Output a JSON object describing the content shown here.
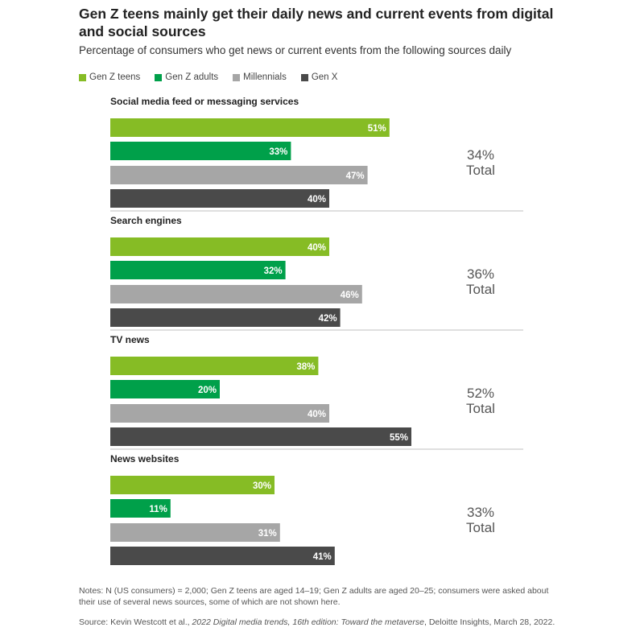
{
  "chart_data": {
    "type": "bar",
    "orientation": "horizontal",
    "title": "Gen Z teens mainly get their daily news and current events from digital and social sources",
    "subtitle": "Percentage of consumers who get news or current events from the following sources daily",
    "series_names": [
      "Gen Z teens",
      "Gen Z adults",
      "Millennials",
      "Gen X"
    ],
    "colors": [
      "#86bc25",
      "#00a04a",
      "#a6a6a6",
      "#4a4a4a"
    ],
    "xlim": [
      0,
      100
    ],
    "groups": [
      {
        "category": "Social media feed or messaging services",
        "values": [
          51,
          33,
          47,
          40
        ],
        "labels": [
          "51%",
          "33%",
          "47%",
          "40%"
        ],
        "total_value": "34%",
        "total_word": "Total"
      },
      {
        "category": "Search engines",
        "values": [
          40,
          32,
          46,
          42
        ],
        "labels": [
          "40%",
          "32%",
          "46%",
          "42%"
        ],
        "total_value": "36%",
        "total_word": "Total"
      },
      {
        "category": "TV news",
        "values": [
          38,
          20,
          40,
          55
        ],
        "labels": [
          "38%",
          "20%",
          "40%",
          "55%"
        ],
        "total_value": "52%",
        "total_word": "Total"
      },
      {
        "category": "News websites",
        "values": [
          30,
          11,
          31,
          41
        ],
        "labels": [
          "30%",
          "11%",
          "31%",
          "41%"
        ],
        "total_value": "33%",
        "total_word": "Total"
      }
    ]
  },
  "legend": [
    {
      "label": "Gen Z teens",
      "color": "#86bc25"
    },
    {
      "label": "Gen Z adults",
      "color": "#00a04a"
    },
    {
      "label": "Millennials",
      "color": "#a6a6a6"
    },
    {
      "label": "Gen X",
      "color": "#4a4a4a"
    }
  ],
  "notes": "Notes: N (US consumers) = 2,000; Gen Z teens are aged 14–19; Gen Z adults are aged 20–25; consumers were asked about their use of several news sources, some of which are not shown here.",
  "source": {
    "prefix": "Source: Kevin Westcott et al., ",
    "italic": "2022 Digital media trends, 16th edition: Toward the metaverse",
    "suffix": ", Deloitte Insights, March 28, 2022."
  }
}
